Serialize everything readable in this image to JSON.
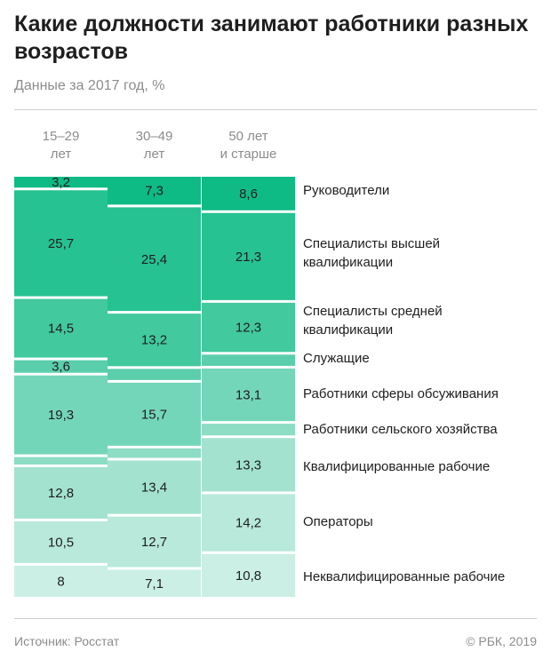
{
  "header": {
    "title": "Какие должности занимают работники разных возрастов",
    "subtitle": "Данные за 2017 год, %"
  },
  "footer": {
    "source": "Источник: Росстат",
    "copyright": "© РБК, 2019"
  },
  "colors": {
    "categories": [
      "#0fbb84",
      "#26c291",
      "#42c99e",
      "#5bceab",
      "#74d6b8",
      "#8ddcc4",
      "#a3e2cf",
      "#b8e9da",
      "#cbefe4"
    ]
  },
  "chart_data": {
    "type": "bar",
    "stacked": true,
    "orientation": "vertical",
    "unit": "%",
    "columns": [
      "15–29 лет",
      "30–49 лет",
      "50 лет и старше"
    ],
    "categories": [
      "Руководители",
      "Специалисты высшей квалификации",
      "Специалисты средней квалификации",
      "Служащие",
      "Работники сферы обсуживания",
      "Работники сельского хозяйства",
      "Квалифицированные рабочие",
      "Операторы",
      "Неквалифицированные рабочие"
    ],
    "series": [
      {
        "name": "15–29 лет",
        "values": [
          3.2,
          25.7,
          14.5,
          3.6,
          19.3,
          2.4,
          12.8,
          10.5,
          8.0
        ],
        "labels": [
          "3,2",
          "25,7",
          "14,5",
          "3,6",
          "19,3",
          "",
          "12,8",
          "10,5",
          "8"
        ]
      },
      {
        "name": "30–49 лет",
        "values": [
          7.3,
          25.4,
          13.2,
          3.3,
          15.7,
          2.9,
          13.4,
          12.7,
          7.1
        ],
        "labels": [
          "7,3",
          "25,4",
          "13,2",
          "",
          "15,7",
          "",
          "13,4",
          "12,7",
          "7,1"
        ]
      },
      {
        "name": "50 лет и старше",
        "values": [
          8.6,
          21.3,
          12.3,
          3.3,
          13.1,
          3.4,
          13.3,
          14.2,
          10.8
        ],
        "labels": [
          "8,6",
          "21,3",
          "12,3",
          "",
          "13,1",
          "",
          "13,3",
          "14,2",
          "10,8"
        ]
      }
    ]
  }
}
